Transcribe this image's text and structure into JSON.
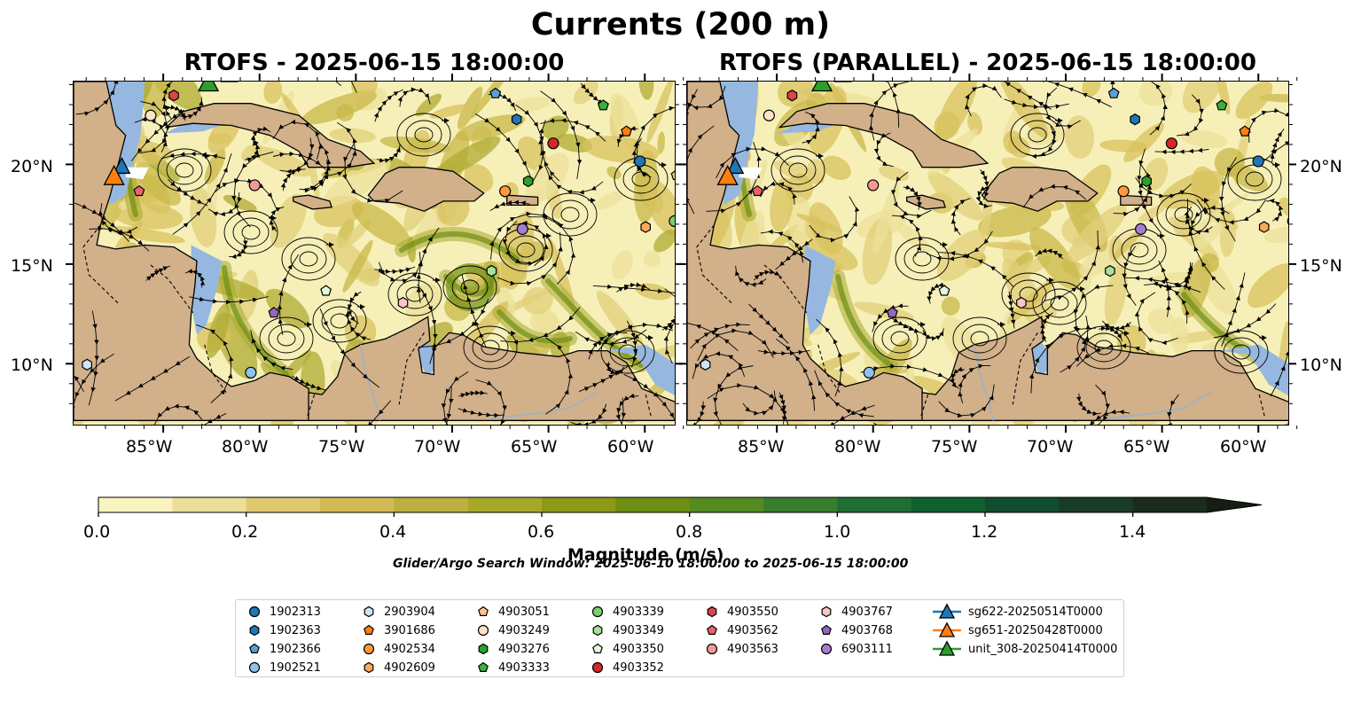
{
  "title": "Currents (200 m)",
  "panels": [
    {
      "title": "RTOFS - 2025-06-15 18:00:00",
      "variant": "a"
    },
    {
      "title": "RTOFS (PARALLEL) - 2025-06-15 18:00:00",
      "variant": "b"
    }
  ],
  "axes": {
    "x_ticks": [
      "85°W",
      "80°W",
      "75°W",
      "70°W",
      "65°W",
      "60°W"
    ],
    "y_ticks": [
      "20°N",
      "15°N",
      "10°N"
    ]
  },
  "colorbar": {
    "ticks": [
      "0.0",
      "0.2",
      "0.4",
      "0.6",
      "0.8",
      "1.0",
      "1.2",
      "1.4"
    ],
    "label": "Magnitude (m/s)",
    "colors": [
      "#faf4c0",
      "#ecdf9c",
      "#e0c870",
      "#d2bb55",
      "#bcb040",
      "#a6a82a",
      "#8c9a18",
      "#6e8e14",
      "#558a20",
      "#3a7d2e",
      "#206e33",
      "#106030",
      "#134d2f",
      "#1a3b25",
      "#1a2c1c",
      "#141e12"
    ]
  },
  "search_window": "Glider/Argo Search Window: 2025-06-10 18:00:00 to 2025-06-15 18:00:00",
  "legend": [
    {
      "label": "1902313",
      "marker": "circle",
      "color": "#1f77b4"
    },
    {
      "label": "1902363",
      "marker": "hexagon",
      "color": "#1f77b4"
    },
    {
      "label": "1902366",
      "marker": "pentagon",
      "color": "#5a9fd4"
    },
    {
      "label": "1902521",
      "marker": "circle",
      "color": "#8ec3ea"
    },
    {
      "label": "2903904",
      "marker": "hexagon",
      "color": "#cce6f7"
    },
    {
      "label": "3901686",
      "marker": "pentagon",
      "color": "#ff7f0e"
    },
    {
      "label": "4902534",
      "marker": "circle",
      "color": "#ff9a3c"
    },
    {
      "label": "4902609",
      "marker": "hexagon",
      "color": "#ffa95a"
    },
    {
      "label": "4903051",
      "marker": "pentagon",
      "color": "#ffc48a"
    },
    {
      "label": "4903249",
      "marker": "circle",
      "color": "#ffe2c4"
    },
    {
      "label": "4903276",
      "marker": "hexagon",
      "color": "#2ca02c"
    },
    {
      "label": "4903333",
      "marker": "pentagon",
      "color": "#3cb03c"
    },
    {
      "label": "4903339",
      "marker": "circle",
      "color": "#7ccf6c"
    },
    {
      "label": "4903349",
      "marker": "hexagon",
      "color": "#a4e29a"
    },
    {
      "label": "4903350",
      "marker": "pentagon",
      "color": "#e2f7dc"
    },
    {
      "label": "4903352",
      "marker": "circle",
      "color": "#d62728"
    },
    {
      "label": "4903550",
      "marker": "hexagon",
      "color": "#d9454a"
    },
    {
      "label": "4903562",
      "marker": "pentagon",
      "color": "#e8636a"
    },
    {
      "label": "4903563",
      "marker": "circle",
      "color": "#f49898"
    },
    {
      "label": "4903767",
      "marker": "hexagon",
      "color": "#f9c6c6"
    },
    {
      "label": "4903768",
      "marker": "pentagon",
      "color": "#9467bd"
    },
    {
      "label": "6903111",
      "marker": "circle",
      "color": "#a67cd0"
    },
    {
      "label": "sg622-20250514T0000",
      "marker": "triangle",
      "color": "#1f77b4"
    },
    {
      "label": "sg651-20250428T0000",
      "marker": "triangle",
      "color": "#ff7f0e"
    },
    {
      "label": "unit_308-20250414T0000",
      "marker": "triangle",
      "color": "#2ca02c"
    }
  ]
}
